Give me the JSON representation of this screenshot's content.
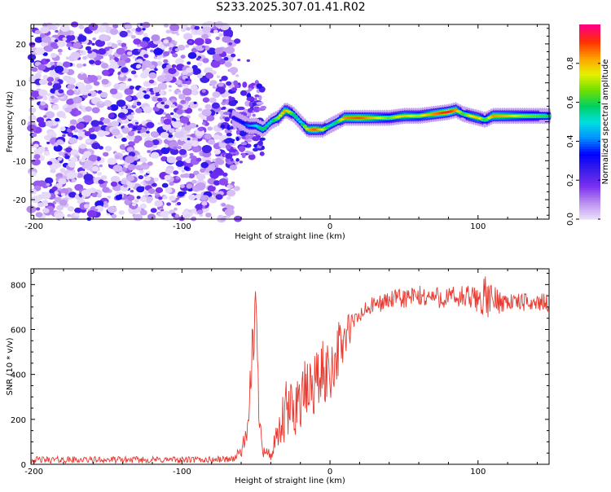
{
  "title": "S233.2025.307.01.41.R02",
  "chart_data": [
    {
      "type": "heatmap",
      "xlabel": "Height of straight line (km)",
      "ylabel": "Frequency (Hz)",
      "xlim": [
        -202,
        148
      ],
      "ylim": [
        -25,
        25
      ],
      "xticks": [
        -200,
        -100,
        0,
        100
      ],
      "yticks": [
        -20,
        -10,
        0,
        10,
        20
      ],
      "colorbar": {
        "label": "Normalized spectral amplitude",
        "range": [
          0,
          1
        ],
        "ticks": [
          "0.0",
          "0.2",
          "0.4",
          "0.6",
          "0.8"
        ],
        "tick_values": [
          0,
          0.2,
          0.4,
          0.6,
          0.8
        ],
        "colors": [
          "#e8dcfa",
          "#b98cf0",
          "#7a2ff0",
          "#3b1ee8",
          "#0000ff",
          "#0090ff",
          "#00e0e0",
          "#00d060",
          "#70e000",
          "#e8f000",
          "#ffa000",
          "#ff3000",
          "#ff0080"
        ]
      },
      "noise_region_x": [
        -202,
        -65
      ],
      "ridge": {
        "x": [
          -65,
          -60,
          -55,
          -50,
          -45,
          -40,
          -35,
          -30,
          -25,
          -20,
          -15,
          -10,
          -5,
          0,
          5,
          10,
          20,
          30,
          40,
          50,
          60,
          70,
          80,
          85,
          90,
          95,
          100,
          105,
          110,
          120,
          130,
          140,
          148
        ],
        "frequency": [
          1,
          0,
          -1,
          -1,
          -2,
          0,
          1,
          3,
          2,
          0,
          -2,
          -2,
          -2,
          -1,
          0,
          1,
          1,
          1,
          1,
          1.5,
          1.5,
          2,
          2.5,
          3,
          2,
          1.5,
          1,
          0.5,
          1.5,
          1.5,
          1.5,
          1.5,
          1.5
        ],
        "amplitude": [
          0.3,
          0.3,
          0.4,
          0.5,
          0.6,
          0.5,
          0.7,
          0.85,
          0.6,
          0.5,
          0.8,
          0.9,
          0.75,
          0.5,
          0.6,
          0.85,
          0.9,
          0.8,
          0.65,
          0.8,
          0.7,
          0.85,
          0.95,
          0.85,
          0.6,
          0.75,
          0.8,
          0.6,
          0.85,
          0.8,
          0.7,
          0.65,
          0.6
        ]
      }
    },
    {
      "type": "line",
      "xlabel": "Height of straight line (km)",
      "ylabel": "SNR (10 * v/v)",
      "xlim": [
        -202,
        148
      ],
      "ylim": [
        0,
        870
      ],
      "xticks": [
        -200,
        -100,
        0,
        100
      ],
      "yticks": [
        0,
        200,
        400,
        600,
        800
      ],
      "series": [
        {
          "name": "SNR",
          "color": "#e8392f",
          "x": [
            -202,
            -180,
            -160,
            -140,
            -120,
            -100,
            -80,
            -65,
            -60,
            -55,
            -52,
            -50,
            -48,
            -45,
            -40,
            -35,
            -30,
            -25,
            -20,
            -15,
            -10,
            -5,
            0,
            5,
            10,
            15,
            20,
            25,
            30,
            40,
            50,
            60,
            70,
            80,
            90,
            100,
            105,
            110,
            120,
            130,
            140,
            148
          ],
          "y": [
            20,
            20,
            20,
            20,
            20,
            20,
            20,
            25,
            60,
            150,
            600,
            700,
            250,
            60,
            40,
            120,
            220,
            250,
            300,
            320,
            370,
            400,
            420,
            500,
            560,
            620,
            660,
            690,
            710,
            730,
            740,
            745,
            745,
            740,
            740,
            735,
            740,
            730,
            725,
            720,
            720,
            720
          ],
          "noise_amplitude": [
            15,
            15,
            15,
            15,
            15,
            15,
            15,
            15,
            30,
            60,
            200,
            100,
            100,
            30,
            30,
            80,
            150,
            150,
            150,
            150,
            150,
            150,
            150,
            130,
            120,
            60,
            40,
            40,
            40,
            40,
            50,
            50,
            50,
            50,
            60,
            60,
            100,
            70,
            40,
            40,
            40,
            40
          ]
        }
      ]
    }
  ]
}
